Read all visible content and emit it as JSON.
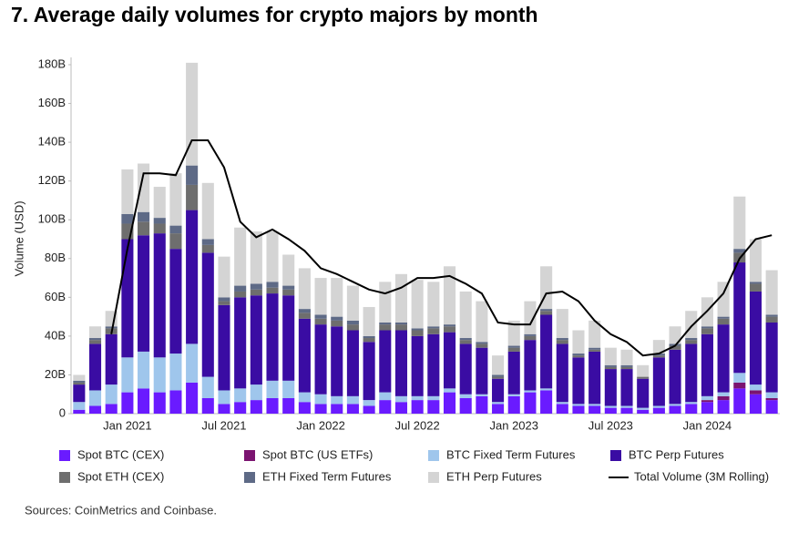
{
  "chart_data": {
    "type": "stacked-bar",
    "title": "7. Average daily volumes for crypto majors by month",
    "y_label": "Volume (USD)",
    "source": "Sources: CoinMetrics and Coinbase.",
    "categories": [
      null,
      null,
      null,
      "Jan 2021",
      null,
      null,
      null,
      null,
      null,
      "Jul 2021",
      null,
      null,
      null,
      null,
      null,
      "Jan 2022",
      null,
      null,
      null,
      null,
      null,
      "Jul 2022",
      null,
      null,
      null,
      null,
      null,
      "Jan 2023",
      null,
      null,
      null,
      null,
      null,
      "Jul 2023",
      null,
      null,
      null,
      null,
      null,
      "Jan 2024",
      null,
      null,
      null,
      null
    ],
    "ylim": [
      0,
      180
    ],
    "yticks": [
      {
        "value": 0,
        "label": "0"
      },
      {
        "value": 20,
        "label": "20B"
      },
      {
        "value": 40,
        "label": "40B"
      },
      {
        "value": 60,
        "label": "60B"
      },
      {
        "value": 80,
        "label": "80B"
      },
      {
        "value": 100,
        "label": "100B"
      },
      {
        "value": 120,
        "label": "120B"
      },
      {
        "value": 140,
        "label": "140B"
      },
      {
        "value": 160,
        "label": "160B"
      },
      {
        "value": 180,
        "label": "180B"
      }
    ],
    "grid": false,
    "legend": "bottom",
    "series": [
      {
        "name": "Spot BTC (CEX)",
        "color": "#6a1bff",
        "values": [
          2,
          4,
          5,
          11,
          13,
          11,
          12,
          16,
          8,
          5,
          6,
          7,
          8,
          8,
          6,
          5,
          5,
          5,
          4,
          7,
          6,
          7,
          7,
          11,
          8,
          9,
          5,
          9,
          11,
          12,
          5,
          4,
          4,
          3,
          3,
          2,
          3,
          4,
          5,
          6,
          7,
          13,
          10,
          7
        ]
      },
      {
        "name": "Spot BTC (US ETFs)",
        "color": "#7b1470",
        "values": [
          0,
          0,
          0,
          0,
          0,
          0,
          0,
          0,
          0,
          0,
          0,
          0,
          0,
          0,
          0,
          0,
          0,
          0,
          0,
          0,
          0,
          0,
          0,
          0,
          0,
          0,
          0,
          0,
          0,
          0,
          0,
          0,
          0,
          0,
          0,
          0,
          0,
          0,
          0,
          1,
          2,
          3,
          2,
          1
        ]
      },
      {
        "name": "BTC Fixed Term Futures",
        "color": "#9fc6ec",
        "values": [
          4,
          8,
          10,
          18,
          19,
          18,
          19,
          20,
          11,
          7,
          7,
          8,
          9,
          9,
          5,
          5,
          4,
          4,
          3,
          4,
          3,
          2,
          2,
          2,
          2,
          1,
          1,
          1,
          1,
          1,
          1,
          1,
          1,
          1,
          1,
          1,
          1,
          1,
          1,
          2,
          2,
          5,
          3,
          3
        ]
      },
      {
        "name": "BTC Perp Futures",
        "color": "#3a0ca3",
        "values": [
          9,
          24,
          26,
          61,
          60,
          64,
          54,
          69,
          64,
          44,
          47,
          46,
          45,
          44,
          38,
          36,
          36,
          34,
          30,
          32,
          34,
          31,
          32,
          29,
          26,
          24,
          12,
          22,
          26,
          38,
          30,
          24,
          27,
          19,
          19,
          15,
          25,
          28,
          30,
          32,
          35,
          57,
          48,
          36
        ]
      },
      {
        "name": "Spot ETH (CEX)",
        "color": "#6e6e6e",
        "values": [
          1,
          2,
          3,
          8,
          7,
          5,
          8,
          13,
          4,
          2,
          3,
          3,
          3,
          3,
          3,
          3,
          3,
          3,
          2,
          3,
          3,
          3,
          3,
          3,
          2,
          2,
          1,
          2,
          2,
          2,
          2,
          1,
          1,
          1,
          1,
          1,
          1,
          2,
          2,
          3,
          3,
          5,
          4,
          3
        ]
      },
      {
        "name": "ETH Fixed Term Futures",
        "color": "#5e6a86",
        "values": [
          1,
          1,
          1,
          5,
          5,
          3,
          4,
          10,
          3,
          2,
          3,
          3,
          3,
          2,
          2,
          2,
          2,
          2,
          1,
          1,
          1,
          1,
          1,
          1,
          1,
          1,
          1,
          1,
          1,
          1,
          1,
          1,
          1,
          1,
          1,
          0,
          1,
          1,
          1,
          1,
          1,
          2,
          1,
          1
        ]
      },
      {
        "name": "ETH Perp Futures",
        "color": "#d4d4d4",
        "values": [
          3,
          6,
          8,
          23,
          25,
          16,
          27,
          53,
          29,
          21,
          30,
          27,
          26,
          16,
          21,
          19,
          20,
          18,
          15,
          21,
          25,
          25,
          23,
          30,
          24,
          21,
          10,
          13,
          17,
          22,
          15,
          12,
          14,
          9,
          8,
          6,
          7,
          9,
          14,
          15,
          18,
          27,
          22,
          23
        ]
      },
      {
        "name": "Total Volume (3M Rolling)",
        "color": "#000000",
        "type": "line",
        "values": [
          null,
          null,
          41,
          85,
          124,
          124,
          123,
          141,
          141,
          127,
          99,
          91,
          95,
          90,
          84,
          75,
          72,
          68,
          64,
          62,
          65,
          70,
          70,
          71,
          67,
          62,
          47,
          46,
          46,
          62,
          63,
          58,
          48,
          41,
          37,
          30,
          31,
          35,
          45,
          53,
          62,
          80,
          90,
          92
        ]
      }
    ]
  }
}
